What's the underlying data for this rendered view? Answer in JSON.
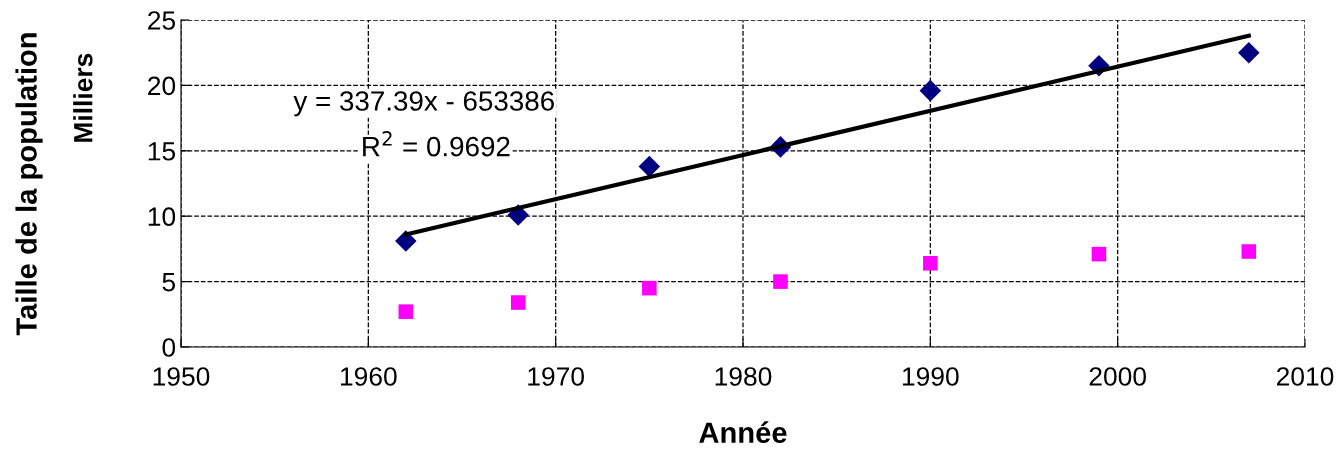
{
  "chart_data": {
    "type": "scatter",
    "xlabel": "Année",
    "ylabel": "Taille de la population",
    "x": [
      1962,
      1968,
      1975,
      1982,
      1990,
      1999,
      2007
    ],
    "series": [
      {
        "color": "#000080",
        "marker": "diamond",
        "values": [
          8.1,
          10.1,
          13.8,
          15.3,
          19.6,
          21.5,
          22.5
        ]
      },
      {
        "color": "#ff00ff",
        "marker": "square",
        "values": [
          2.7,
          3.4,
          4.5,
          5.0,
          6.4,
          7.1,
          7.3
        ]
      },
      {
        "type": "line",
        "color": "#000000",
        "marker": "none",
        "x": [
          1962,
          2007
        ],
        "values": [
          8.6,
          23.8
        ]
      }
    ],
    "annotations": [
      "y = 337.39x - 653386",
      "R$^{2}$ = 0.9692",
      "Milliers"
    ],
    "xlim": [
      1950,
      2010
    ],
    "xticks": [
      1950,
      1960,
      1970,
      1980,
      1990,
      2000,
      2010
    ],
    "ylim": [
      0,
      25
    ],
    "yticks": [
      0,
      5,
      10,
      15,
      20,
      25
    ],
    "grid": true
  }
}
